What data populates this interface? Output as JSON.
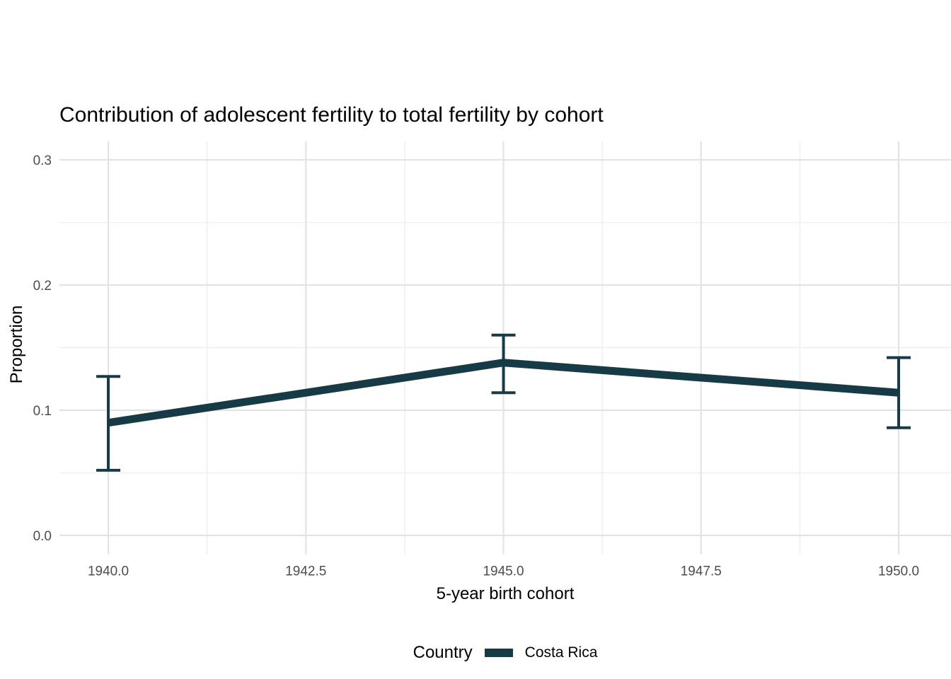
{
  "chart_data": {
    "type": "line",
    "title": "Contribution of adolescent fertility to total fertility by cohort",
    "xlabel": "5-year birth cohort",
    "ylabel": "Proportion",
    "xlim": [
      1939.382,
      1950.662
    ],
    "ylim": [
      -0.015,
      0.315
    ],
    "grid": true,
    "x_ticks": [
      {
        "v": 1940.0,
        "label": "1940.0"
      },
      {
        "v": 1942.5,
        "label": "1942.5"
      },
      {
        "v": 1945.0,
        "label": "1945.0"
      },
      {
        "v": 1947.5,
        "label": "1947.5"
      },
      {
        "v": 1950.0,
        "label": "1950.0"
      }
    ],
    "y_ticks": [
      {
        "v": 0.0,
        "label": "0.0"
      },
      {
        "v": 0.1,
        "label": "0.1"
      },
      {
        "v": 0.2,
        "label": "0.2"
      },
      {
        "v": 0.3,
        "label": "0.3"
      }
    ],
    "x_minor": [
      1941.25,
      1943.75,
      1946.25,
      1948.75
    ],
    "y_minor": [
      0.05,
      0.15,
      0.25
    ],
    "legend": {
      "title": "Country",
      "position": "bottom"
    },
    "series": [
      {
        "name": "Costa Rica",
        "color": "#173a47",
        "x": [
          1940,
          1945,
          1950
        ],
        "y": [
          0.09,
          0.138,
          0.114
        ],
        "ymin": [
          0.052,
          0.114,
          0.086
        ],
        "ymax": [
          0.127,
          0.16,
          0.142
        ]
      }
    ],
    "colors": {
      "grid_major": "#e3e3e3",
      "grid_minor": "#efefef",
      "tick_text": "#4d4d4d",
      "title_text": "#000000"
    }
  }
}
